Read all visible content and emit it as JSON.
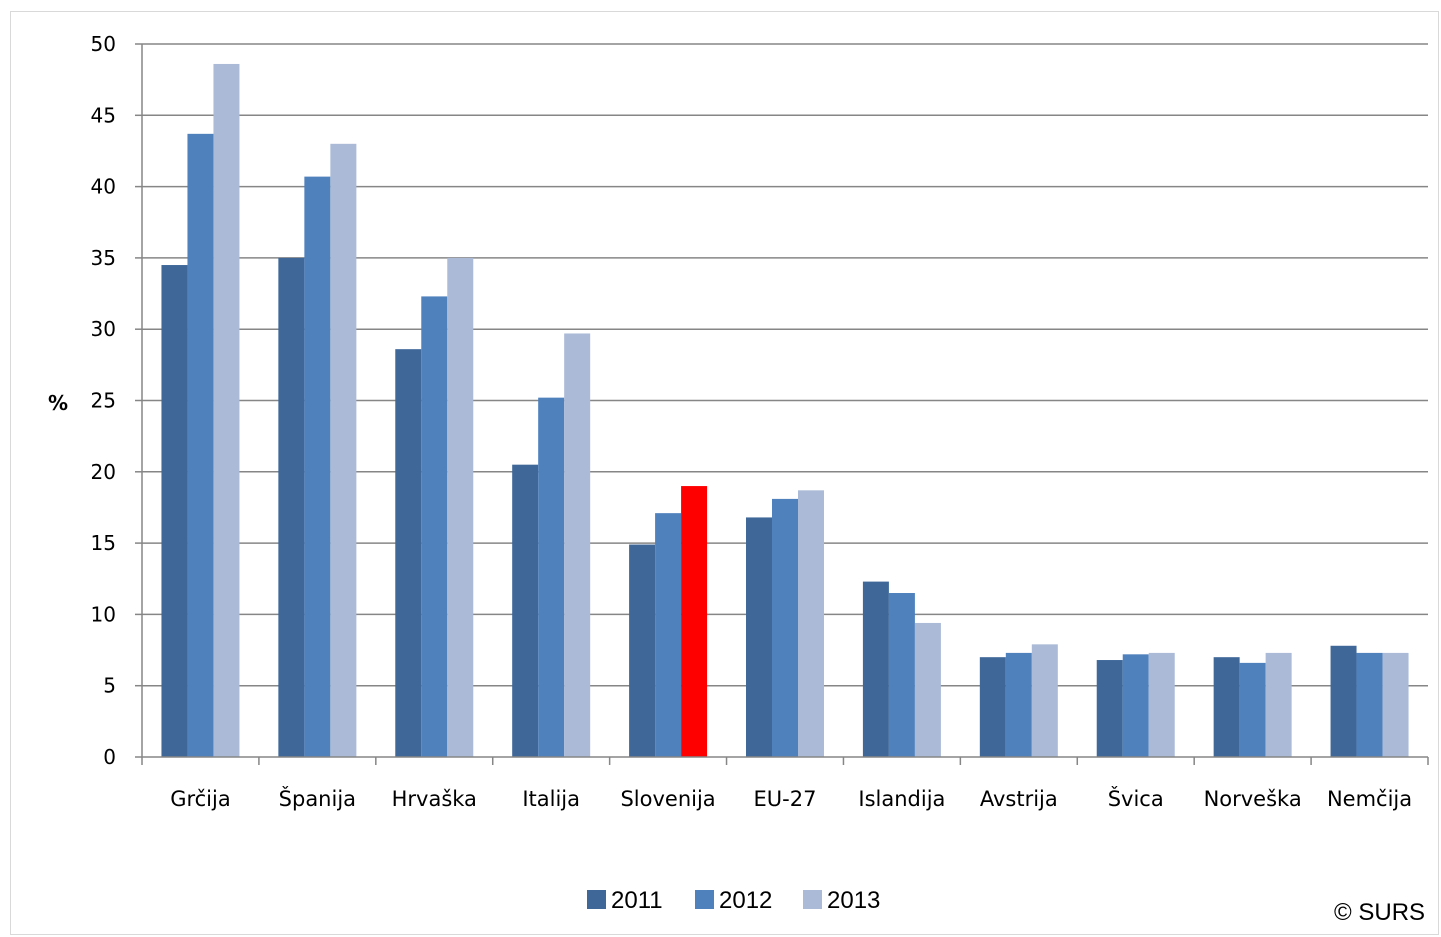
{
  "chart_data": {
    "type": "bar",
    "title": "",
    "xlabel": "",
    "ylabel": "%",
    "ylim": [
      0,
      50
    ],
    "yticks": [
      0,
      5,
      10,
      15,
      20,
      25,
      30,
      35,
      40,
      45,
      50
    ],
    "grid": true,
    "legend_position": "bottom",
    "categories": [
      "Grčija",
      "Španija",
      "Hrvaška",
      "Italija",
      "Slovenija",
      "EU-27",
      "Islandija",
      "Avstrija",
      "Švica",
      "Norveška",
      "Nemčija"
    ],
    "series": [
      {
        "name": "2011",
        "color": "#3f6899",
        "values": [
          34.5,
          35.0,
          28.6,
          20.5,
          14.9,
          16.8,
          12.3,
          7.0,
          6.8,
          7.0,
          7.8
        ]
      },
      {
        "name": "2012",
        "color": "#4f81bd",
        "values": [
          43.7,
          40.7,
          32.3,
          25.2,
          17.1,
          18.1,
          11.5,
          7.3,
          7.2,
          6.6,
          7.3
        ]
      },
      {
        "name": "2013",
        "color": "#aabad7",
        "values": [
          48.6,
          43.0,
          35.0,
          29.7,
          19.0,
          18.7,
          9.4,
          7.9,
          7.3,
          7.3,
          7.3
        ]
      }
    ],
    "highlight": {
      "category": "Slovenija",
      "series": "2013",
      "color": "#ff0000"
    },
    "source_note": "© SURS"
  }
}
